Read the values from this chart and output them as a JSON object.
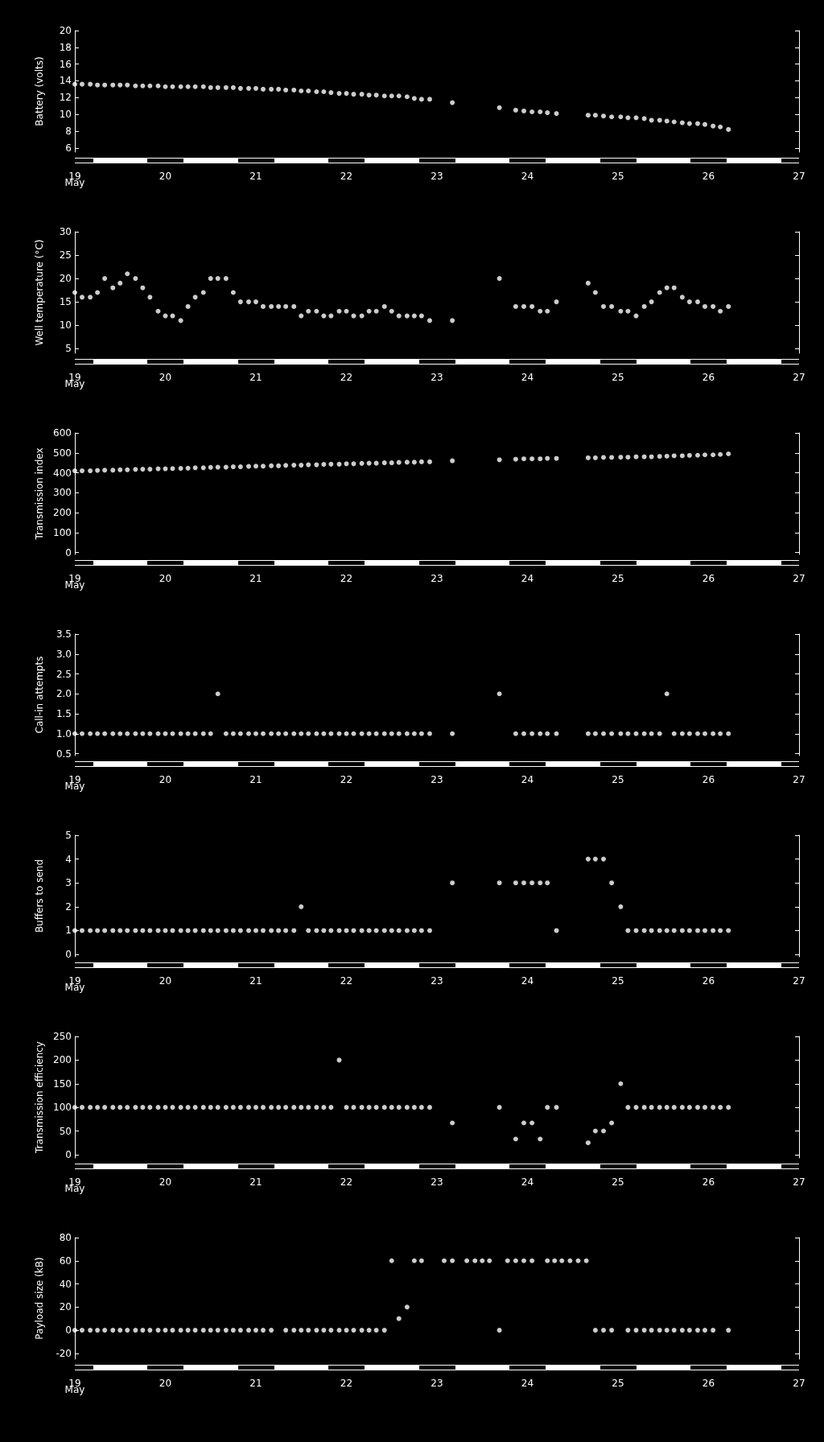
{
  "chart_data": [
    {
      "type": "scatter",
      "ylabel": "Battery (volts)",
      "color": "#ffffff",
      "marker": "circle",
      "x": [
        19,
        19.08,
        19.17,
        19.25,
        19.33,
        19.42,
        19.5,
        19.58,
        19.67,
        19.75,
        19.83,
        19.92,
        20,
        20.08,
        20.17,
        20.25,
        20.33,
        20.42,
        20.5,
        20.58,
        20.67,
        20.75,
        20.83,
        20.92,
        21,
        21.08,
        21.17,
        21.25,
        21.33,
        21.42,
        21.5,
        21.58,
        21.67,
        21.75,
        21.83,
        21.92,
        22,
        22.08,
        22.17,
        22.25,
        22.33,
        22.42,
        22.5,
        22.58,
        22.67,
        22.75,
        22.83,
        22.92,
        23.17,
        23.69,
        23.87,
        23.96,
        24.05,
        24.14,
        24.22,
        24.32,
        24.67,
        24.75,
        24.84,
        24.93,
        25.03,
        25.11,
        25.2,
        25.29,
        25.37,
        25.46,
        25.54,
        25.62,
        25.71,
        25.79,
        25.88,
        25.96,
        26.05,
        26.13,
        26.22
      ],
      "values": [
        13.6,
        13.6,
        13.6,
        13.5,
        13.5,
        13.5,
        13.5,
        13.5,
        13.4,
        13.4,
        13.4,
        13.4,
        13.3,
        13.3,
        13.3,
        13.3,
        13.3,
        13.3,
        13.2,
        13.2,
        13.2,
        13.2,
        13.1,
        13.1,
        13.1,
        13.0,
        13.0,
        13.0,
        12.9,
        12.9,
        12.8,
        12.8,
        12.7,
        12.7,
        12.6,
        12.5,
        12.5,
        12.4,
        12.4,
        12.3,
        12.3,
        12.2,
        12.2,
        12.2,
        12.1,
        11.9,
        11.8,
        11.8,
        11.4,
        10.8,
        10.5,
        10.4,
        10.3,
        10.3,
        10.2,
        10.1,
        9.9,
        9.9,
        9.8,
        9.7,
        9.7,
        9.6,
        9.6,
        9.5,
        9.3,
        9.3,
        9.2,
        9.1,
        9.0,
        8.9,
        8.9,
        8.8,
        8.6,
        8.5,
        8.2
      ],
      "xlim": [
        19,
        27
      ],
      "xticks": [
        19,
        20,
        21,
        22,
        23,
        24,
        25,
        26,
        27
      ],
      "annotations": [
        "May"
      ],
      "ylim": [
        5.5,
        20
      ],
      "yticks": [
        6,
        8,
        10,
        12,
        14,
        16,
        18,
        20
      ]
    },
    {
      "type": "scatter",
      "ylabel": "Well temperature (°C)",
      "color": "#ffffff",
      "marker": "circle",
      "x": [
        19,
        19.08,
        19.17,
        19.25,
        19.33,
        19.42,
        19.5,
        19.58,
        19.67,
        19.75,
        19.83,
        19.92,
        20,
        20.08,
        20.17,
        20.25,
        20.33,
        20.42,
        20.5,
        20.58,
        20.67,
        20.75,
        20.83,
        20.92,
        21,
        21.08,
        21.17,
        21.25,
        21.33,
        21.42,
        21.5,
        21.58,
        21.67,
        21.75,
        21.83,
        21.92,
        22,
        22.08,
        22.17,
        22.25,
        22.33,
        22.42,
        22.5,
        22.58,
        22.67,
        22.75,
        22.83,
        22.92,
        23.17,
        23.69,
        23.87,
        23.96,
        24.05,
        24.14,
        24.22,
        24.32,
        24.67,
        24.75,
        24.84,
        24.93,
        25.03,
        25.11,
        25.2,
        25.29,
        25.37,
        25.46,
        25.54,
        25.62,
        25.71,
        25.79,
        25.88,
        25.96,
        26.05,
        26.13,
        26.22
      ],
      "values": [
        17,
        16,
        16,
        17,
        20,
        18,
        19,
        21,
        20,
        18,
        16,
        13,
        12,
        12,
        11,
        14,
        16,
        17,
        20,
        20,
        20,
        17,
        15,
        15,
        15,
        14,
        14,
        14,
        14,
        14,
        12,
        13,
        13,
        12,
        12,
        13,
        13,
        12,
        12,
        13,
        13,
        14,
        13,
        12,
        12,
        12,
        12,
        11,
        11,
        20,
        14,
        14,
        14,
        13,
        13,
        15,
        19,
        17,
        14,
        14,
        13,
        13,
        12,
        14,
        15,
        17,
        18,
        18,
        16,
        15,
        15,
        14,
        14,
        13,
        14
      ],
      "xlim": [
        19,
        27
      ],
      "xticks": [
        19,
        20,
        21,
        22,
        23,
        24,
        25,
        26,
        27
      ],
      "annotations": [
        "May"
      ],
      "ylim": [
        4,
        30
      ],
      "yticks": [
        5,
        10,
        15,
        20,
        25,
        30
      ]
    },
    {
      "type": "scatter",
      "ylabel": "Transmission index",
      "color": "#ffffff",
      "marker": "circle",
      "x": [
        19,
        19.08,
        19.17,
        19.25,
        19.33,
        19.42,
        19.5,
        19.58,
        19.67,
        19.75,
        19.83,
        19.92,
        20,
        20.08,
        20.17,
        20.25,
        20.33,
        20.42,
        20.5,
        20.58,
        20.67,
        20.75,
        20.83,
        20.92,
        21,
        21.08,
        21.17,
        21.25,
        21.33,
        21.42,
        21.5,
        21.58,
        21.67,
        21.75,
        21.83,
        21.92,
        22,
        22.08,
        22.17,
        22.25,
        22.33,
        22.42,
        22.5,
        22.58,
        22.67,
        22.75,
        22.83,
        22.92,
        23.17,
        23.69,
        23.87,
        23.96,
        24.05,
        24.14,
        24.22,
        24.32,
        24.67,
        24.75,
        24.84,
        24.93,
        25.03,
        25.11,
        25.2,
        25.29,
        25.37,
        25.46,
        25.54,
        25.62,
        25.71,
        25.79,
        25.88,
        25.96,
        26.05,
        26.13,
        26.22
      ],
      "values": [
        410,
        410,
        410,
        412,
        413,
        413,
        415,
        415,
        417,
        418,
        418,
        420,
        420,
        421,
        422,
        423,
        425,
        425,
        427,
        428,
        428,
        430,
        430,
        432,
        433,
        433,
        435,
        435,
        437,
        438,
        438,
        440,
        440,
        442,
        443,
        443,
        445,
        445,
        447,
        448,
        448,
        450,
        450,
        452,
        453,
        453,
        455,
        455,
        460,
        465,
        468,
        470,
        470,
        470,
        472,
        472,
        475,
        475,
        477,
        477,
        478,
        478,
        480,
        480,
        480,
        482,
        483,
        485,
        485,
        487,
        488,
        490,
        490,
        492,
        495
      ],
      "xlim": [
        19,
        27
      ],
      "xticks": [
        19,
        20,
        21,
        22,
        23,
        24,
        25,
        26,
        27
      ],
      "annotations": [
        "May"
      ],
      "ylim": [
        -10,
        600
      ],
      "yticks": [
        0,
        100,
        200,
        300,
        400,
        500,
        600
      ]
    },
    {
      "type": "scatter",
      "ylabel": "Call-in attempts",
      "color": "#ffffff",
      "marker": "circle",
      "x": [
        19,
        19.08,
        19.17,
        19.25,
        19.33,
        19.42,
        19.5,
        19.58,
        19.67,
        19.75,
        19.83,
        19.92,
        20,
        20.08,
        20.17,
        20.25,
        20.33,
        20.42,
        20.5,
        20.58,
        20.67,
        20.75,
        20.83,
        20.92,
        21,
        21.08,
        21.17,
        21.25,
        21.33,
        21.42,
        21.5,
        21.58,
        21.67,
        21.75,
        21.83,
        21.92,
        22,
        22.08,
        22.17,
        22.25,
        22.33,
        22.42,
        22.5,
        22.58,
        22.67,
        22.75,
        22.83,
        22.92,
        23.17,
        23.69,
        23.87,
        23.96,
        24.05,
        24.14,
        24.22,
        24.32,
        24.67,
        24.75,
        24.84,
        24.93,
        25.03,
        25.11,
        25.2,
        25.29,
        25.37,
        25.46,
        25.54,
        25.62,
        25.71,
        25.79,
        25.88,
        25.96,
        26.05,
        26.13,
        26.22
      ],
      "values": [
        1,
        1,
        1,
        1,
        1,
        1,
        1,
        1,
        1,
        1,
        1,
        1,
        1,
        1,
        1,
        1,
        1,
        1,
        1,
        2,
        1,
        1,
        1,
        1,
        1,
        1,
        1,
        1,
        1,
        1,
        1,
        1,
        1,
        1,
        1,
        1,
        1,
        1,
        1,
        1,
        1,
        1,
        1,
        1,
        1,
        1,
        1,
        1,
        1,
        2,
        1,
        1,
        1,
        1,
        1,
        1,
        1,
        1,
        1,
        1,
        1,
        1,
        1,
        1,
        1,
        1,
        2,
        1,
        1,
        1,
        1,
        1,
        1,
        1,
        1
      ],
      "xlim": [
        19,
        27
      ],
      "xticks": [
        19,
        20,
        21,
        22,
        23,
        24,
        25,
        26,
        27
      ],
      "annotations": [
        "May"
      ],
      "ylim": [
        0.45,
        3.5
      ],
      "yticks": [
        {
          "value": 0.5,
          "label": "0.5"
        },
        {
          "value": 1,
          "label": "1.0"
        },
        {
          "value": 1.5,
          "label": "1.5"
        },
        {
          "value": 2,
          "label": "2.0"
        },
        {
          "value": 2.5,
          "label": "2.5"
        },
        {
          "value": 3,
          "label": "3.0"
        },
        {
          "value": 3.5,
          "label": "3.5"
        }
      ]
    },
    {
      "type": "scatter",
      "ylabel": "Buffers to send",
      "color": "#ffffff",
      "marker": "circle",
      "x": [
        19,
        19.08,
        19.17,
        19.25,
        19.33,
        19.42,
        19.5,
        19.58,
        19.67,
        19.75,
        19.83,
        19.92,
        20,
        20.08,
        20.17,
        20.25,
        20.33,
        20.42,
        20.5,
        20.58,
        20.67,
        20.75,
        20.83,
        20.92,
        21,
        21.08,
        21.17,
        21.25,
        21.33,
        21.42,
        21.5,
        21.58,
        21.67,
        21.75,
        21.83,
        21.92,
        22,
        22.08,
        22.17,
        22.25,
        22.33,
        22.42,
        22.5,
        22.58,
        22.67,
        22.75,
        22.83,
        22.92,
        23.17,
        23.69,
        23.87,
        23.96,
        24.05,
        24.14,
        24.22,
        24.32,
        24.67,
        24.75,
        24.84,
        24.93,
        25.03,
        25.11,
        25.2,
        25.29,
        25.37,
        25.46,
        25.54,
        25.62,
        25.71,
        25.79,
        25.88,
        25.96,
        26.05,
        26.13,
        26.22
      ],
      "values": [
        1,
        1,
        1,
        1,
        1,
        1,
        1,
        1,
        1,
        1,
        1,
        1,
        1,
        1,
        1,
        1,
        1,
        1,
        1,
        1,
        1,
        1,
        1,
        1,
        1,
        1,
        1,
        1,
        1,
        1,
        2,
        1,
        1,
        1,
        1,
        1,
        1,
        1,
        1,
        1,
        1,
        1,
        1,
        1,
        1,
        1,
        1,
        1,
        3,
        3,
        3,
        3,
        3,
        3,
        3,
        1,
        4,
        4,
        4,
        3,
        2,
        1,
        1,
        1,
        1,
        1,
        1,
        1,
        1,
        1,
        1,
        1,
        1,
        1,
        1
      ],
      "xlim": [
        19,
        27
      ],
      "xticks": [
        19,
        20,
        21,
        22,
        23,
        24,
        25,
        26,
        27
      ],
      "annotations": [
        "May"
      ],
      "ylim": [
        -0.1,
        5
      ],
      "yticks": [
        0,
        1,
        2,
        3,
        4,
        5
      ]
    },
    {
      "type": "scatter",
      "ylabel": "Transmission efficiency",
      "color": "#ffffff",
      "marker": "circle",
      "x": [
        19,
        19.08,
        19.17,
        19.25,
        19.33,
        19.42,
        19.5,
        19.58,
        19.67,
        19.75,
        19.83,
        19.92,
        20,
        20.08,
        20.17,
        20.25,
        20.33,
        20.42,
        20.5,
        20.58,
        20.67,
        20.75,
        20.83,
        20.92,
        21,
        21.08,
        21.17,
        21.25,
        21.33,
        21.42,
        21.5,
        21.58,
        21.67,
        21.75,
        21.83,
        21.92,
        22,
        22.08,
        22.17,
        22.25,
        22.33,
        22.42,
        22.5,
        22.58,
        22.67,
        22.75,
        22.83,
        22.92,
        23.17,
        23.69,
        23.87,
        23.96,
        24.05,
        24.14,
        24.22,
        24.32,
        24.67,
        24.75,
        24.84,
        24.93,
        25.03,
        25.11,
        25.2,
        25.29,
        25.37,
        25.46,
        25.54,
        25.62,
        25.71,
        25.79,
        25.88,
        25.96,
        26.05,
        26.13,
        26.22
      ],
      "values": [
        100,
        100,
        100,
        100,
        100,
        100,
        100,
        100,
        100,
        100,
        100,
        100,
        100,
        100,
        100,
        100,
        100,
        100,
        100,
        100,
        100,
        100,
        100,
        100,
        100,
        100,
        100,
        100,
        100,
        100,
        100,
        100,
        100,
        100,
        100,
        200,
        100,
        100,
        100,
        100,
        100,
        100,
        100,
        100,
        100,
        100,
        100,
        100,
        67,
        100,
        33,
        67,
        67,
        33,
        100,
        100,
        25,
        50,
        50,
        67,
        150,
        100,
        100,
        100,
        100,
        100,
        100,
        100,
        100,
        100,
        100,
        100,
        100,
        100,
        100
      ],
      "xlim": [
        19,
        27
      ],
      "xticks": [
        19,
        20,
        21,
        22,
        23,
        24,
        25,
        26,
        27
      ],
      "annotations": [
        "May"
      ],
      "ylim": [
        -7,
        250
      ],
      "yticks": [
        0,
        50,
        100,
        150,
        200,
        250
      ]
    },
    {
      "type": "scatter",
      "ylabel": "Payload size (kB)",
      "color": "#ffffff",
      "marker": "circle",
      "x": [
        19,
        19.08,
        19.17,
        19.25,
        19.33,
        19.42,
        19.5,
        19.58,
        19.67,
        19.75,
        19.83,
        19.92,
        20,
        20.08,
        20.17,
        20.25,
        20.33,
        20.42,
        20.5,
        20.58,
        20.67,
        20.75,
        20.83,
        20.92,
        21,
        21.08,
        21.17,
        21.33,
        21.42,
        21.5,
        21.58,
        21.67,
        21.75,
        21.83,
        21.92,
        22,
        22.08,
        22.17,
        22.25,
        22.33,
        22.42,
        22.5,
        22.58,
        22.67,
        22.75,
        22.83,
        23.08,
        23.17,
        23.33,
        23.42,
        23.5,
        23.58,
        23.69,
        23.78,
        23.87,
        23.96,
        24.05,
        24.22,
        24.3,
        24.38,
        24.47,
        24.56,
        24.65,
        24.75,
        24.84,
        24.93,
        25.11,
        25.2,
        25.29,
        25.37,
        25.46,
        25.54,
        25.62,
        25.71,
        25.79,
        25.88,
        25.96,
        26.05,
        26.22
      ],
      "values": [
        0,
        0,
        0,
        0,
        0,
        0,
        0,
        0,
        0,
        0,
        0,
        0,
        0,
        0,
        0,
        0,
        0,
        0,
        0,
        0,
        0,
        0,
        0,
        0,
        0,
        0,
        0,
        0,
        0,
        0,
        0,
        0,
        0,
        0,
        0,
        0,
        0,
        0,
        0,
        0,
        0,
        60,
        10,
        20,
        60,
        60,
        60,
        60,
        60,
        60,
        60,
        60,
        0,
        60,
        60,
        60,
        60,
        60,
        60,
        60,
        60,
        60,
        60,
        0,
        0,
        0,
        0,
        0,
        0,
        0,
        0,
        0,
        0,
        0,
        0,
        0,
        0,
        0,
        0
      ],
      "xlim": [
        19,
        27
      ],
      "xticks": [
        19,
        20,
        21,
        22,
        23,
        24,
        25,
        26,
        27
      ],
      "annotations": [
        "May"
      ],
      "ylim": [
        -25,
        80
      ],
      "yticks": [
        -20,
        0,
        20,
        40,
        60,
        80
      ]
    }
  ]
}
